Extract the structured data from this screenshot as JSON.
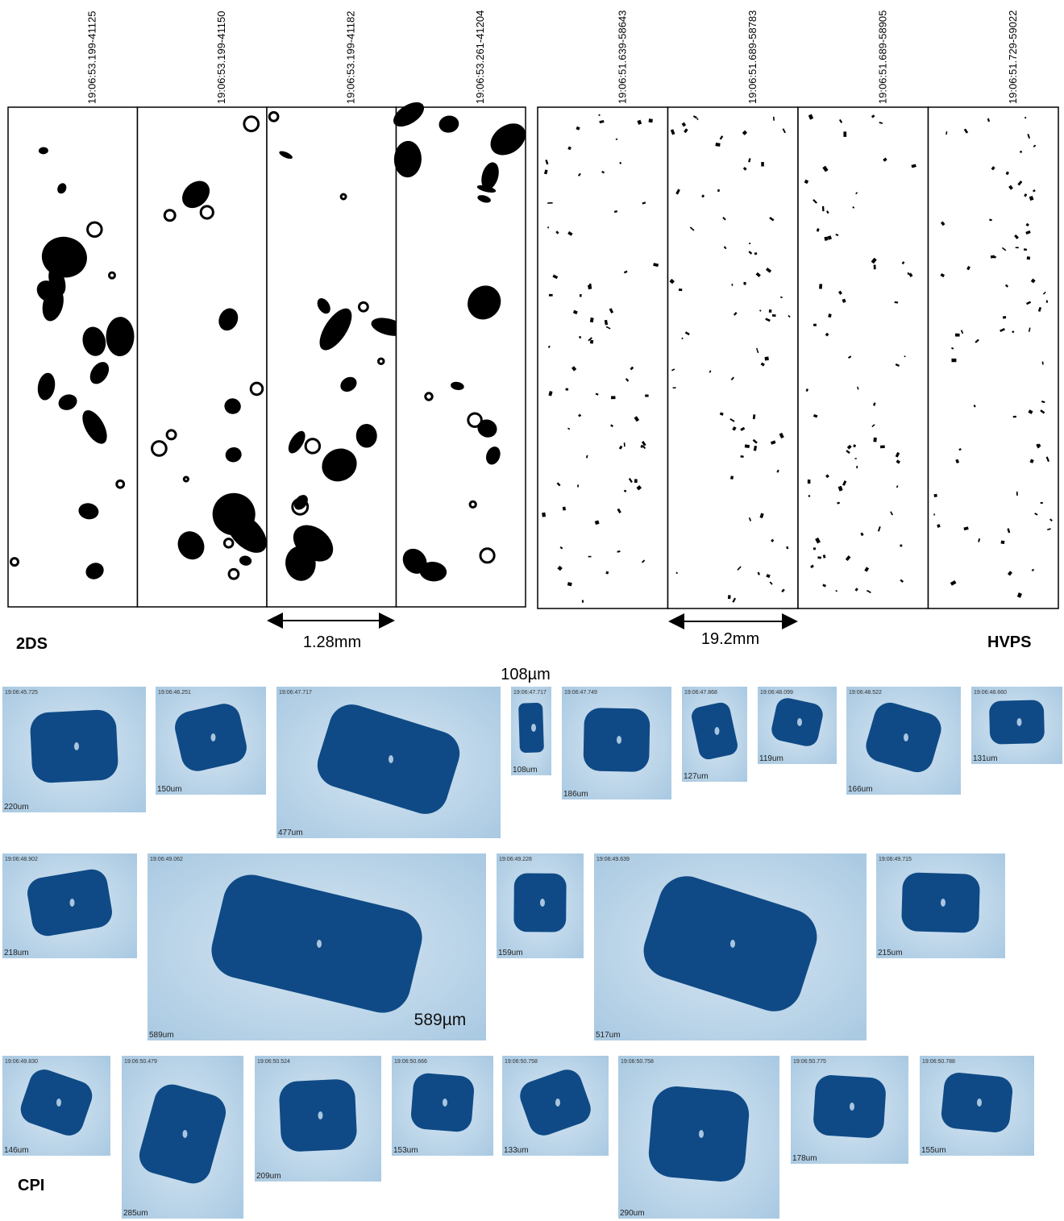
{
  "twods": {
    "label": "2DS",
    "strips": [
      "19:06:53.199-41125",
      "19:06:53.199-41150",
      "19:06:53.199-41182",
      "19:06:53.261-41204"
    ],
    "scale": "1.28mm"
  },
  "hvps": {
    "label": "HVPS",
    "strips": [
      "19:06:51.639-58643",
      "19:06:51.689-58783",
      "19:06:51.689-58905",
      "19:06:51.729-59022"
    ],
    "scale": "19.2mm"
  },
  "cpi": {
    "label": "CPI",
    "annotations": [
      "108µm",
      "589µm"
    ],
    "images": [
      {
        "time": "19:06:45.725",
        "size": "220um"
      },
      {
        "time": "19:06:46.251",
        "size": "150um"
      },
      {
        "time": "19:06:47.717",
        "size": "477um"
      },
      {
        "time": "19:06:47.717",
        "size": "108um"
      },
      {
        "time": "19:06:47.749",
        "size": "186um"
      },
      {
        "time": "19:06:47.868",
        "size": "127um"
      },
      {
        "time": "19:06:48.099",
        "size": "119um"
      },
      {
        "time": "19:06:48.522",
        "size": "166um"
      },
      {
        "time": "19:06:48.660",
        "size": "131um"
      },
      {
        "time": "19:06:48.902",
        "size": "218um"
      },
      {
        "time": "19:06:49.062",
        "size": "589um"
      },
      {
        "time": "19:06:49.228",
        "size": "159um"
      },
      {
        "time": "19:06:49.639",
        "size": "517um"
      },
      {
        "time": "19:06:49.715",
        "size": "215um"
      },
      {
        "time": "19:06:49.830",
        "size": "146um"
      },
      {
        "time": "19:06:50.479",
        "size": "285um"
      },
      {
        "time": "19:06:50.524",
        "size": "209um"
      },
      {
        "time": "19:06:50.666",
        "size": "153um"
      },
      {
        "time": "19:06:50.758",
        "size": "133um"
      },
      {
        "time": "19:06:50.758",
        "size": "290um"
      },
      {
        "time": "19:06:50.775",
        "size": "178um"
      },
      {
        "time": "19:06:50.788",
        "size": "155um"
      }
    ]
  }
}
